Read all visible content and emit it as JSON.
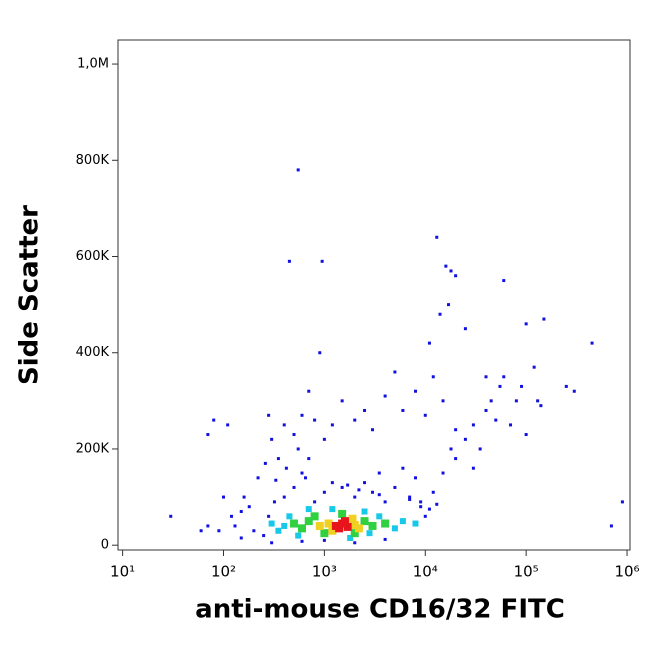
{
  "chart_data": {
    "type": "scatter",
    "xlabel": "anti-mouse CD16/32 FITC",
    "ylabel": "Side Scatter",
    "xscale": "log",
    "xlim": [
      9,
      1070000
    ],
    "xticks": [
      {
        "value": 10,
        "label": "10¹"
      },
      {
        "value": 100,
        "label": "10²"
      },
      {
        "value": 1000,
        "label": "10³"
      },
      {
        "value": 10000,
        "label": "10⁴"
      },
      {
        "value": 100000,
        "label": "10⁵"
      },
      {
        "value": 1000000,
        "label": "10⁶"
      }
    ],
    "ylim": [
      -10000,
      1050000
    ],
    "yticks": [
      0,
      {
        "value": 200000,
        "label": "200K"
      },
      {
        "value": 400000,
        "label": "400K"
      },
      {
        "value": 600000,
        "label": "600K"
      },
      {
        "value": 800000,
        "label": "800K"
      },
      {
        "value": 1000000,
        "label": "1,0M"
      }
    ],
    "series": [
      {
        "color": "#1010e0",
        "marker_size": 3,
        "x": [
          250,
          280,
          320,
          400,
          500,
          600,
          700,
          550,
          800,
          1000,
          1200,
          1500,
          2000,
          2500,
          3000,
          3500,
          4000,
          5000,
          6000,
          7000,
          8000,
          9000,
          10000,
          12000,
          15000,
          18000,
          20000,
          25000,
          30000,
          35000,
          40000,
          45000,
          50000,
          55000,
          60000,
          70000,
          80000,
          40000,
          30000,
          20000,
          15000,
          12000,
          10000,
          8000,
          6000,
          5000,
          4000,
          3000,
          2500,
          2000,
          1500,
          1200,
          1000,
          800,
          900,
          700,
          600,
          500,
          400,
          300,
          280,
          450,
          550,
          950,
          13000,
          16000,
          18000,
          17000,
          14000,
          11000,
          20000,
          25000,
          60000,
          100000,
          150000,
          450000,
          900000,
          700000,
          250000,
          300000,
          120000,
          130000,
          90000,
          100000,
          140000,
          70,
          80,
          110,
          100,
          120,
          150,
          130,
          70,
          30,
          60,
          90,
          200,
          180,
          160,
          220,
          260,
          350,
          300,
          600,
          1000,
          2000,
          4000,
          150,
          9000,
          11000,
          13000,
          7000,
          3500,
          2200,
          1700,
          650,
          420,
          330
        ],
        "values": [
          20000,
          60000,
          90000,
          100000,
          120000,
          150000,
          180000,
          200000,
          90000,
          110000,
          130000,
          120000,
          100000,
          130000,
          110000,
          150000,
          90000,
          120000,
          160000,
          100000,
          140000,
          80000,
          60000,
          110000,
          150000,
          200000,
          180000,
          220000,
          250000,
          200000,
          280000,
          300000,
          260000,
          330000,
          350000,
          250000,
          300000,
          350000,
          160000,
          240000,
          300000,
          350000,
          270000,
          320000,
          280000,
          360000,
          310000,
          240000,
          280000,
          260000,
          300000,
          250000,
          220000,
          260000,
          400000,
          320000,
          270000,
          230000,
          250000,
          220000,
          270000,
          590000,
          780000,
          590000,
          640000,
          580000,
          570000,
          500000,
          480000,
          420000,
          560000,
          450000,
          550000,
          460000,
          470000,
          420000,
          90000,
          40000,
          330000,
          320000,
          370000,
          300000,
          330000,
          230000,
          290000,
          230000,
          260000,
          250000,
          100000,
          60000,
          70000,
          40000,
          40000,
          60000,
          30000,
          30000,
          30000,
          80000,
          100000,
          140000,
          170000,
          180000,
          5000,
          8000,
          10000,
          5000,
          12000,
          15000,
          90000,
          75000,
          85000,
          95000,
          105000,
          115000,
          125000,
          140000,
          160000,
          135000
        ]
      },
      {
        "color": "#18c8e8",
        "marker_size": 6,
        "x": [
          400,
          450,
          350,
          3500,
          5000,
          6000,
          700,
          1200,
          2500,
          300,
          8000,
          1800,
          2800,
          550
        ],
        "values": [
          40000,
          60000,
          30000,
          60000,
          35000,
          50000,
          75000,
          75000,
          70000,
          45000,
          45000,
          15000,
          25000,
          20000
        ]
      },
      {
        "color": "#30d040",
        "marker_size": 8,
        "x": [
          700,
          600,
          2500,
          3000,
          800,
          1000,
          2000,
          1500,
          500,
          4000
        ],
        "values": [
          50000,
          35000,
          50000,
          40000,
          60000,
          25000,
          25000,
          65000,
          45000,
          45000
        ]
      },
      {
        "color": "#f0d020",
        "marker_size": 8,
        "x": [
          1100,
          2000,
          1200,
          1900,
          900,
          2200
        ],
        "values": [
          45000,
          42000,
          30000,
          55000,
          40000,
          35000
        ]
      },
      {
        "color": "#e8141c",
        "marker_size": 8,
        "x": [
          1300,
          1500,
          1700,
          1400,
          1600
        ],
        "values": [
          40000,
          45000,
          38000,
          35000,
          50000
        ]
      }
    ]
  }
}
